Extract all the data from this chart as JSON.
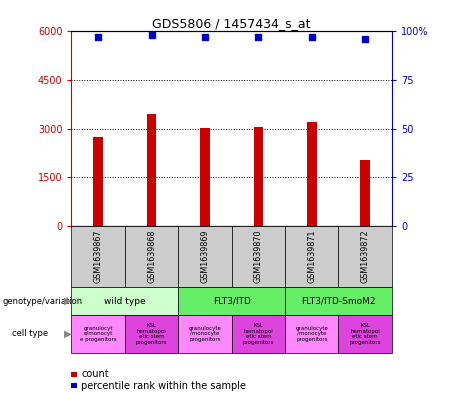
{
  "title": "GDS5806 / 1457434_s_at",
  "samples": [
    "GSM1639867",
    "GSM1639868",
    "GSM1639869",
    "GSM1639870",
    "GSM1639871",
    "GSM1639872"
  ],
  "counts": [
    2750,
    3450,
    3020,
    3060,
    3220,
    2050
  ],
  "percentiles": [
    97,
    98,
    97,
    97,
    97,
    96
  ],
  "bar_color": "#cc0000",
  "dot_color": "#0000cc",
  "ylim_left": [
    0,
    6000
  ],
  "ylim_right": [
    0,
    100
  ],
  "yticks_left": [
    0,
    1500,
    3000,
    4500,
    6000
  ],
  "ytick_labels_left": [
    "0",
    "1500",
    "3000",
    "4500",
    "6000"
  ],
  "yticks_right": [
    0,
    25,
    50,
    75,
    100
  ],
  "ytick_labels_right": [
    "0",
    "25",
    "50",
    "75",
    "100%"
  ],
  "legend_count_color": "#cc0000",
  "legend_pct_color": "#0000cc",
  "background_color": "#ffffff",
  "gsm_bg_color": "#cccccc",
  "genotype_data": [
    {
      "label": "wild type",
      "cols": [
        0,
        1
      ],
      "color": "#ccffcc"
    },
    {
      "label": "FLT3/ITD",
      "cols": [
        2,
        3
      ],
      "color": "#66ee66"
    },
    {
      "label": "FLT3/ITD-SmoM2",
      "cols": [
        4,
        5
      ],
      "color": "#66ee66"
    }
  ],
  "cell_type_data": [
    {
      "label": "granulocyt\ne/monocyt\ne progenitors",
      "col": 0,
      "color": "#ff88ff"
    },
    {
      "label": "KSL\nhematopoi\netic stem\nprogenitors",
      "col": 1,
      "color": "#dd44dd"
    },
    {
      "label": "granulocyte\n/monocyte\nprogenitors",
      "col": 2,
      "color": "#ff88ff"
    },
    {
      "label": "KSL\nhematopoi\netic stem\nprogenitors",
      "col": 3,
      "color": "#dd44dd"
    },
    {
      "label": "granulocyte\n/monocyte\nprogenitors",
      "col": 4,
      "color": "#ff88ff"
    },
    {
      "label": "KSL\nhematopoi\netic stem\nprogenitors",
      "col": 5,
      "color": "#dd44dd"
    }
  ]
}
